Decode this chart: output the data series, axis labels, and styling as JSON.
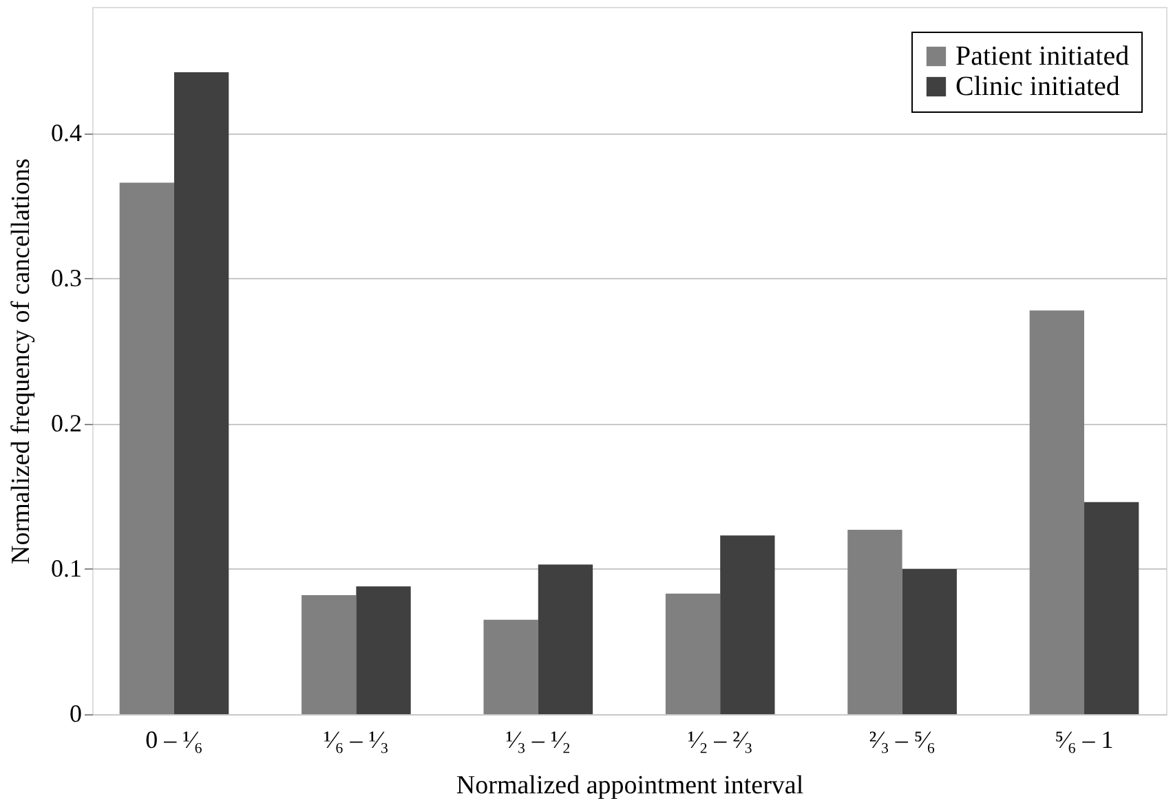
{
  "chart_data": {
    "type": "bar",
    "xlabel": "Normalized appointment interval",
    "ylabel": "Normalized frequency of cancellations",
    "categories": [
      "0 – ¹⁄₆",
      "¹⁄₆ – ¹⁄₃",
      "¹⁄₃ – ¹⁄₂",
      "¹⁄₂ – ²⁄₃",
      "²⁄₃ – ⁵⁄₆",
      "⁵⁄₆ – 1"
    ],
    "series": [
      {
        "name": "Patient initiated",
        "color": "#808080",
        "values": [
          0.366,
          0.082,
          0.065,
          0.083,
          0.127,
          0.278
        ]
      },
      {
        "name": "Clinic initiated",
        "color": "#404040",
        "values": [
          0.442,
          0.088,
          0.103,
          0.123,
          0.1,
          0.146
        ]
      }
    ],
    "ylim": [
      0,
      0.487
    ],
    "yticks": [
      0,
      0.1,
      0.2,
      0.3,
      0.4
    ],
    "grid": "y",
    "legend": "top right"
  }
}
